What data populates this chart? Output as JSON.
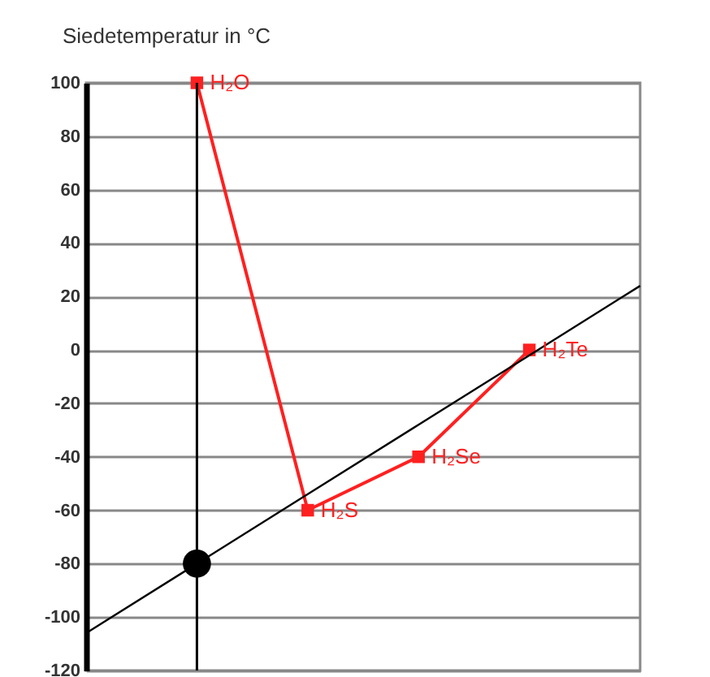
{
  "chart_data": {
    "type": "line",
    "ylabel": "Siedetemperatur in °C",
    "categories": [
      null,
      null,
      null,
      null,
      null,
      null
    ],
    "ylim": [
      -120,
      100
    ],
    "yticks": [
      -120,
      -100,
      -80,
      -60,
      -40,
      -20,
      0,
      20,
      40,
      60,
      80,
      100
    ],
    "grid": "y",
    "tick_labels": "y",
    "marker": "square",
    "line_style": "solid",
    "series": [
      {
        "color": "#ff2020",
        "values": [
          null,
          100,
          -60,
          -40,
          0,
          null
        ]
      },
      {
        "type": "line",
        "marker": "none",
        "color": "#000000",
        "values": [
          -106,
          -80,
          -54,
          -28,
          -2,
          24
        ]
      },
      {
        "type": "scatter",
        "marker": "circle",
        "color": "#000000",
        "values": [
          null,
          -80,
          null,
          null,
          null,
          null
        ]
      }
    ],
    "annotations": [
      "H₂O",
      "H₂S",
      "H₂Se",
      "H₂Te"
    ]
  }
}
